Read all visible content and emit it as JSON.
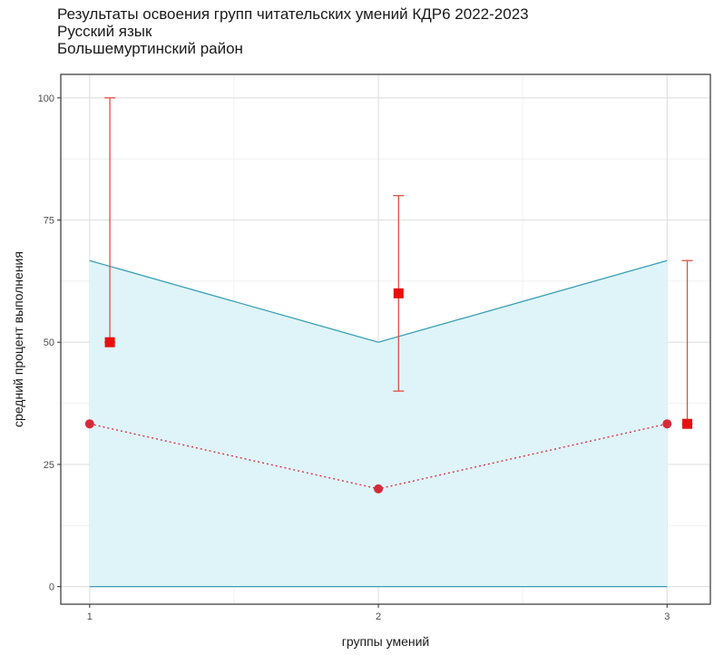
{
  "chart_data": {
    "type": "line",
    "title": "Результаты освоения групп читательских умений КДР6 2022-2023",
    "subtitle_lines": [
      "Русский язык",
      "Большемуртинский район"
    ],
    "xlabel": "группы умений",
    "ylabel": "средний процент выполнения",
    "x": [
      1,
      2,
      3
    ],
    "x_tick_labels": [
      "1",
      "2",
      "3"
    ],
    "y_ticks": [
      0,
      25,
      50,
      75,
      100
    ],
    "y_tick_labels": [
      "0",
      "25",
      "50",
      "75",
      "100"
    ],
    "xlim": [
      0.9,
      3.15
    ],
    "ylim": [
      -3.6,
      104.8
    ],
    "grid": true,
    "band": {
      "lower": [
        0,
        0,
        0
      ],
      "upper": [
        66.7,
        50,
        66.7
      ],
      "fill_color": "#dff4f8",
      "line_color": "#3a9fb5"
    },
    "dotted_series": {
      "values": [
        33.3,
        20,
        33.3
      ],
      "color": "#d62a3a"
    },
    "square_series": {
      "x_offset": 0.07,
      "values": [
        50,
        60,
        33.3
      ],
      "error_low": [
        50,
        40,
        33.3
      ],
      "error_high": [
        100,
        80,
        66.7
      ],
      "color": "#e8100f",
      "errorbar_color": "#e0503f"
    }
  }
}
